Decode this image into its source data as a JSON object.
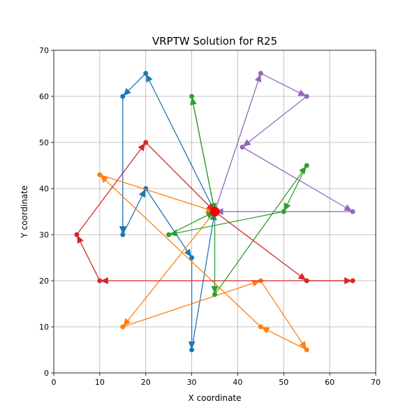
{
  "chart_data": {
    "type": "line",
    "title": "VRPTW Solution for R25",
    "xlabel": "X coordinate",
    "ylabel": "Y coordinate",
    "xlim": [
      0,
      70
    ],
    "ylim": [
      0,
      70
    ],
    "x_ticks": [
      0,
      10,
      20,
      30,
      40,
      50,
      60,
      70
    ],
    "y_ticks": [
      0,
      10,
      20,
      30,
      40,
      50,
      60,
      70
    ],
    "grid": true,
    "depot": {
      "x": 35,
      "y": 35,
      "color": "#ff0000"
    },
    "series": [
      {
        "color": "#1f77b4",
        "route": [
          [
            35,
            35
          ],
          [
            20,
            65
          ],
          [
            15,
            60
          ],
          [
            15,
            30
          ],
          [
            20,
            40
          ],
          [
            30,
            25
          ],
          [
            30,
            5
          ],
          [
            35,
            35
          ]
        ]
      },
      {
        "color": "#ff7f0e",
        "route": [
          [
            35,
            35
          ],
          [
            15,
            10
          ],
          [
            45,
            20
          ],
          [
            55,
            5
          ],
          [
            45,
            10
          ],
          [
            10,
            43
          ],
          [
            35,
            35
          ]
        ]
      },
      {
        "color": "#2ca02c",
        "route": [
          [
            35,
            35
          ],
          [
            35,
            17
          ],
          [
            55,
            45
          ],
          [
            50,
            35
          ],
          [
            25,
            30
          ],
          [
            35,
            35
          ],
          [
            30,
            60
          ],
          [
            35,
            35
          ]
        ]
      },
      {
        "color": "#d62728",
        "route": [
          [
            35,
            35
          ],
          [
            55,
            20
          ],
          [
            65,
            20
          ],
          [
            10,
            20
          ],
          [
            5,
            30
          ],
          [
            20,
            50
          ],
          [
            35,
            35
          ]
        ]
      },
      {
        "color": "#9467bd",
        "route": [
          [
            35,
            35
          ],
          [
            45,
            65
          ],
          [
            55,
            60
          ],
          [
            41,
            49
          ],
          [
            65,
            35
          ],
          [
            35,
            35
          ]
        ]
      }
    ]
  }
}
